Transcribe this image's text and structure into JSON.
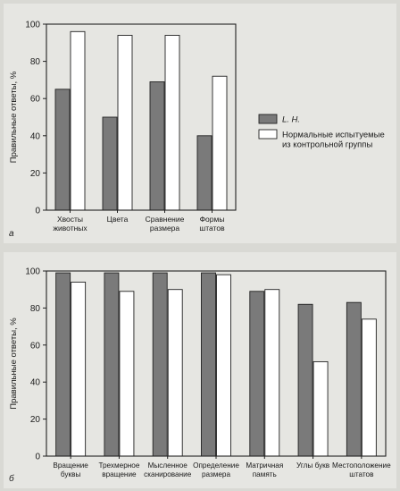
{
  "colors": {
    "lh_fill": "#7a7a7a",
    "control_fill": "#ffffff",
    "panel_bg": "#e6e6e2",
    "frame": "#222222"
  },
  "chart_data": [
    {
      "type": "bar",
      "panel_label": "а",
      "ylabel": "Правильные ответы, %",
      "ylim": [
        0,
        100
      ],
      "yticks": [
        0,
        20,
        40,
        60,
        80,
        100
      ],
      "categories": [
        [
          "Хвосты",
          "животных"
        ],
        [
          "Цвета"
        ],
        [
          "Сравнение",
          "размера"
        ],
        [
          "Формы",
          "штатов"
        ]
      ],
      "series": [
        {
          "name": "L. H.",
          "values": [
            65,
            50,
            69,
            40
          ]
        },
        {
          "name": "Нормальные испытуемые из контрольной группы",
          "values": [
            96,
            94,
            94,
            72
          ]
        }
      ],
      "legend": {
        "placement": "right",
        "items": [
          {
            "lines": [
              "L. H."
            ],
            "style": "italic"
          },
          {
            "lines": [
              "Нормальные испытуемые",
              "из контрольной группы"
            ],
            "style": "normal"
          }
        ]
      }
    },
    {
      "type": "bar",
      "panel_label": "б",
      "ylabel": "Правильные ответы, %",
      "ylim": [
        0,
        100
      ],
      "yticks": [
        0,
        20,
        40,
        60,
        80,
        100
      ],
      "categories": [
        [
          "Вращение",
          "буквы"
        ],
        [
          "Трехмерное",
          "вращение"
        ],
        [
          "Мысленное",
          "сканирование"
        ],
        [
          "Определение",
          "размера"
        ],
        [
          "Матричная",
          "память"
        ],
        [
          "Углы букв"
        ],
        [
          "Местоположение",
          "штатов"
        ]
      ],
      "series": [
        {
          "name": "L. H.",
          "values": [
            99,
            99,
            99,
            99,
            89,
            82,
            83
          ]
        },
        {
          "name": "Нормальные испытуемые из контрольной группы",
          "values": [
            94,
            89,
            90,
            98,
            90,
            51,
            74
          ]
        }
      ]
    }
  ]
}
